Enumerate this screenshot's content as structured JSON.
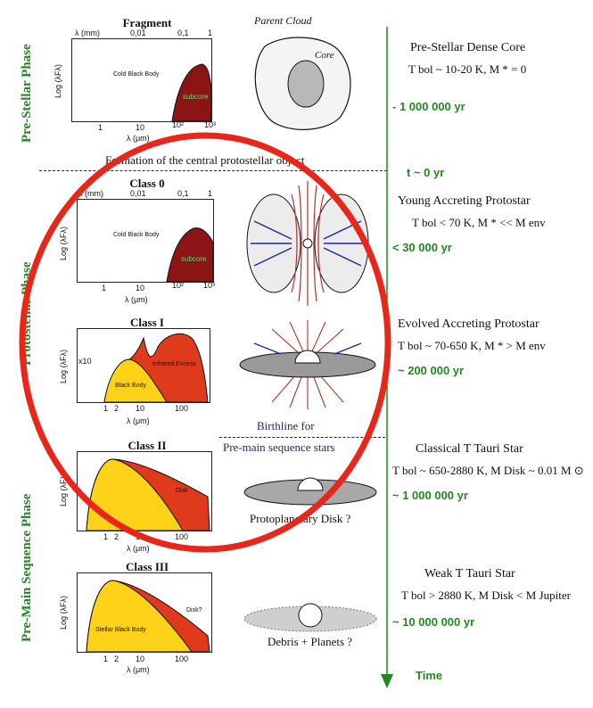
{
  "phases": {
    "pre_stellar": "Pre-Stellar Phase",
    "protostellar": "Protostellar Phase",
    "pre_main_sequence": "Pre-Main Sequence Phase"
  },
  "panels": {
    "fragment": {
      "title": "Fragment",
      "top_axis_label": "λ (mm)",
      "top_ticks": [
        "0,01",
        "0,1",
        "1"
      ],
      "y_label": "Log (λFλ)",
      "x_ticks": [
        "1",
        "10",
        "10²",
        "10³"
      ],
      "x_label": "λ (μm)",
      "body_label": "Cold Black Body",
      "fill_label": "subcore"
    },
    "class0": {
      "title": "Class 0",
      "top_axis_label": "λ (mm)",
      "top_ticks": [
        "0,01",
        "0,1",
        "1"
      ],
      "y_label": "Log (λFλ)",
      "x_ticks": [
        "1",
        "10",
        "10²",
        "10³"
      ],
      "x_label": "λ (μm)",
      "body_label": "Cold Black Body",
      "fill_label": "subcore"
    },
    "class1": {
      "title": "Class I",
      "y_label": "Log (λFλ)",
      "scale_mark": "x10",
      "x_ticks": [
        "1",
        "2",
        "10",
        "100"
      ],
      "x_label": "λ (μm)",
      "body_label": "Black Body",
      "excess_label": "Infrared Excess"
    },
    "class2": {
      "title": "Class II",
      "y_label": "Log (λFλ)",
      "x_ticks": [
        "1",
        "2",
        "10",
        "100"
      ],
      "x_label": "λ (μm)",
      "excess_label": "Disk"
    },
    "class3": {
      "title": "Class III",
      "y_label": "Log (λFλ)",
      "x_ticks": [
        "1",
        "2",
        "10",
        "100"
      ],
      "x_label": "λ (μm)",
      "body_label": "Stellar Black Body",
      "excess_label": "Disk?"
    }
  },
  "sketches": {
    "parent_cloud": "Parent Cloud",
    "core": "Core",
    "protoplanetary": "Protoplanetary Disk ?",
    "debris": "Debris + Planets ?",
    "birthline_1": "Birthline for",
    "birthline_2": "Pre-main sequence stars",
    "formation": "Formation of the central protostellar object"
  },
  "stages": [
    {
      "name": "Pre-Stellar Dense Core",
      "cond": "T bol ~ 10-20 K,  M * = 0",
      "age": "- 1 000 000 yr"
    },
    {
      "name": "Young Accreting Protostar",
      "cond": "T bol < 70 K,  M * << M env",
      "age": "< 30 000 yr"
    },
    {
      "name": "Evolved Accreting Protostar",
      "cond": "T bol ~ 70-650 K,  M * > M env",
      "age": "~ 200 000 yr"
    },
    {
      "name": "Classical T Tauri Star",
      "cond": "T bol ~ 650-2880 K,  M Disk ~ 0.01 M ⊙",
      "age": "~ 1 000 000 yr"
    },
    {
      "name": "Weak T Tauri Star",
      "cond": "T bol > 2880 K,  M Disk < M Jupiter",
      "age": "~ 10 000 000 yr"
    }
  ],
  "timeline": {
    "t0": "t ~ 0 yr",
    "time": "Time"
  },
  "colors": {
    "green": "#1f8a1f",
    "dark_red": "#8b1414",
    "red": "#e03a1c",
    "yellow": "#ffd21a",
    "ellipse": "#e8261a"
  }
}
